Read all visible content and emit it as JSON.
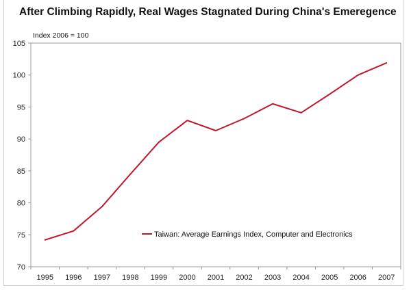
{
  "chart_data": {
    "type": "line",
    "title": "After Climbing Rapidly, Real Wages Stagnated During China's Emeregence",
    "subtitle": "Index 2006 = 100",
    "xlabel": "",
    "ylabel": "",
    "categories": [
      "1995",
      "1996",
      "1997",
      "1998",
      "1999",
      "2000",
      "2001",
      "2002",
      "2003",
      "2004",
      "2005",
      "2006",
      "2007"
    ],
    "series": [
      {
        "name": "Taiwan:  Average Earnings Index, Computer and Electronics",
        "values": [
          74.2,
          75.6,
          79.4,
          84.5,
          89.5,
          92.9,
          91.3,
          93.2,
          95.5,
          94.1,
          97.0,
          100.0,
          101.9
        ],
        "color": "#c0172f"
      }
    ],
    "ylim": [
      70,
      105
    ],
    "yticks": [
      "70",
      "75",
      "80",
      "85",
      "90",
      "95",
      "100",
      "105"
    ],
    "grid": false,
    "legend_position": "bottom-center inside plot"
  }
}
